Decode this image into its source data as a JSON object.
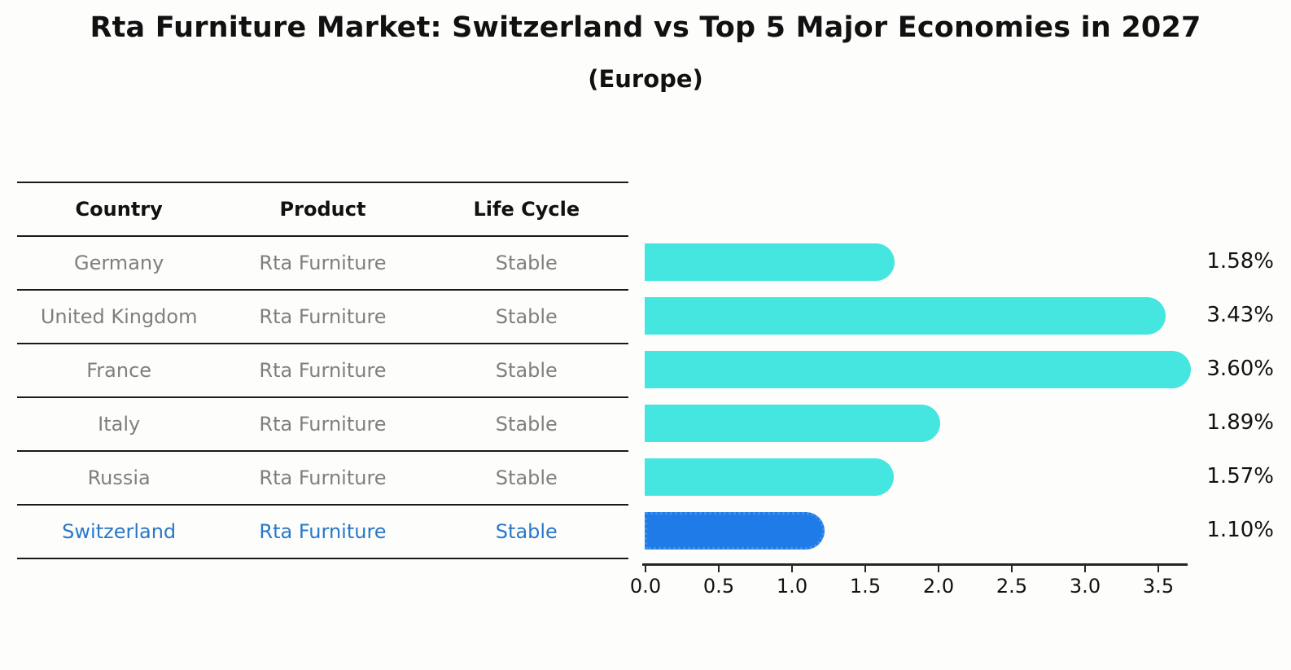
{
  "title": "Rta Furniture Market: Switzerland vs Top 5 Major Economies in 2027",
  "subtitle": "(Europe)",
  "table": {
    "headers": [
      "Country",
      "Product",
      "Life Cycle"
    ],
    "rows": [
      {
        "country": "Germany",
        "product": "Rta Furniture",
        "life_cycle": "Stable",
        "highlight": false
      },
      {
        "country": "United Kingdom",
        "product": "Rta Furniture",
        "life_cycle": "Stable",
        "highlight": false
      },
      {
        "country": "France",
        "product": "Rta Furniture",
        "life_cycle": "Stable",
        "highlight": false
      },
      {
        "country": "Italy",
        "product": "Rta Furniture",
        "life_cycle": "Stable",
        "highlight": false
      },
      {
        "country": "Russia",
        "product": "Rta Furniture",
        "life_cycle": "Stable",
        "highlight": false
      },
      {
        "country": "Switzerland",
        "product": "Rta Furniture",
        "life_cycle": "Stable",
        "highlight": true
      }
    ]
  },
  "chart_data": {
    "type": "bar",
    "orientation": "horizontal",
    "title": "Rta Furniture Market: Switzerland vs Top 5 Major Economies in 2027",
    "subtitle": "(Europe)",
    "categories": [
      "Germany",
      "United Kingdom",
      "France",
      "Italy",
      "Russia",
      "Switzerland"
    ],
    "values": [
      1.58,
      3.43,
      3.6,
      1.89,
      1.57,
      1.1
    ],
    "value_labels": [
      "1.58%",
      "3.43%",
      "3.60%",
      "1.89%",
      "1.57%",
      "1.10%"
    ],
    "highlight_index": 5,
    "x_ticks": [
      0.0,
      0.5,
      1.0,
      1.5,
      2.0,
      2.5,
      3.0,
      3.5
    ],
    "x_tick_labels": [
      "0.0",
      "0.5",
      "1.0",
      "1.5",
      "2.0",
      "2.5",
      "3.0",
      "3.5"
    ],
    "xlim": [
      0,
      3.72
    ],
    "grid": false,
    "legend": "none",
    "bar_style": "rounded-right-cap",
    "highlight_bar_style": "dotted-edge"
  },
  "colors": {
    "background": "#fdfdfc",
    "bar": "#45E6E0",
    "highlight_bar": "#1E7BE8",
    "highlight_border": "#3E90EE",
    "highlight_text": "#2878C8",
    "table_text": "#7f7f7f",
    "header_text": "#111111",
    "axis": "#262626"
  }
}
